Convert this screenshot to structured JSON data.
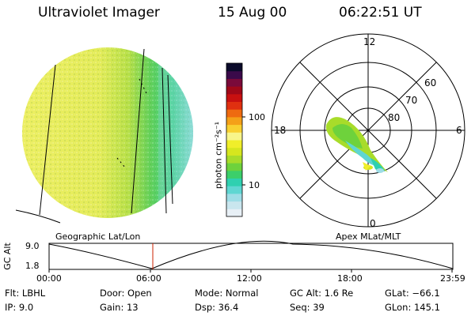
{
  "header": {
    "instrument": "Ultraviolet Imager",
    "date": "15 Aug 00",
    "time": "06:22:51 UT"
  },
  "colorbar": {
    "unit_label": "photon cm⁻²s⁻¹",
    "tick_100": "100",
    "tick_10": "10",
    "colors": [
      "#e8f0f6",
      "#c9e6ee",
      "#9edde6",
      "#5fd6d2",
      "#2fd0b0",
      "#3ccf6a",
      "#6ed23c",
      "#a8dc2a",
      "#d6e61e",
      "#f0ee2a",
      "#f8f58a",
      "#f8d030",
      "#f4a018",
      "#ee6a10",
      "#e03010",
      "#c81010",
      "#a00818",
      "#7a0a3a",
      "#3a0a4a",
      "#0a0a2a"
    ]
  },
  "polar": {
    "mlt_top": "12",
    "mlt_left": "18",
    "mlt_right": "6",
    "mlt_bottom": "0",
    "lat_60": "60",
    "lat_70": "70",
    "lat_80": "80"
  },
  "labels": {
    "geo": "Geographic Lat/Lon",
    "apex": "Apex MLat/MLT"
  },
  "altitude_plot": {
    "ylabel": "GC Alt",
    "y_max_label": "9.0",
    "y_min_label": "1.8",
    "x_ticks": [
      "00:00",
      "06:00",
      "12:00",
      "18:00",
      "23:59"
    ]
  },
  "info": {
    "flt": "Flt: LBHL",
    "ip": "IP:  9.0",
    "door": "Door: Open",
    "gain": "Gain: 13",
    "mode": "Mode: Normal",
    "dsp": "Dsp:   36.4",
    "gcalt": "GC Alt: 1.6 Re",
    "seq": "Seq: 39",
    "glat": "GLat: −66.1",
    "glon": "GLon: 145.1"
  }
}
